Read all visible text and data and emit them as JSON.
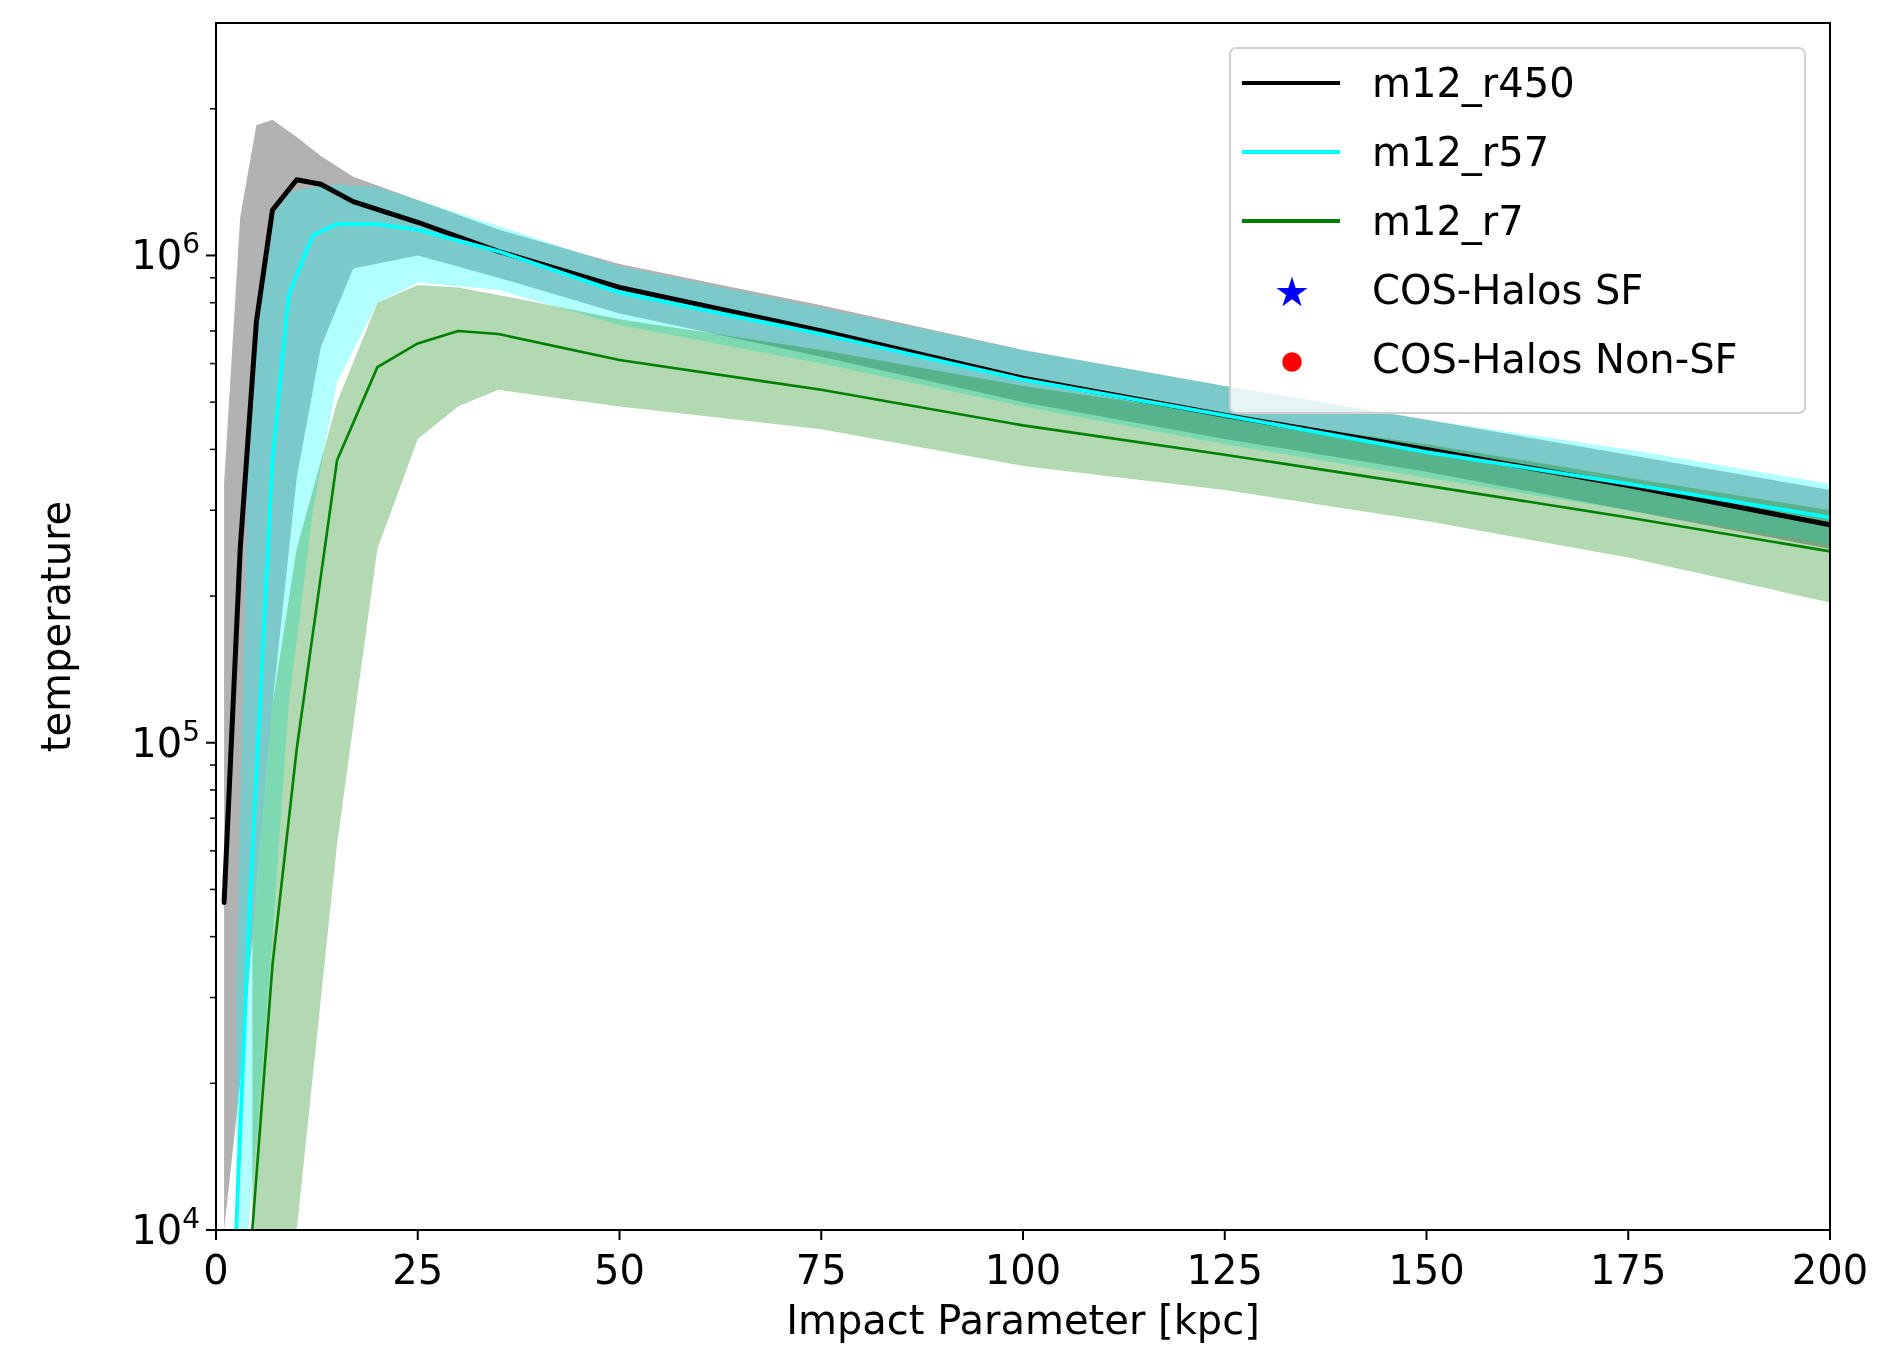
{
  "chart_data": {
    "type": "line",
    "xlabel": "Impact Parameter [kpc]",
    "ylabel": "temperature",
    "log": "y",
    "grid": false,
    "legend": "top right",
    "xlim": [
      0,
      200
    ],
    "xticks": [
      0,
      25,
      50,
      75,
      100,
      125,
      150,
      175,
      200
    ],
    "ylim": [
      10000,
      3000000
    ],
    "yticks": [
      {
        "value": 10000,
        "label": "10$^{4}$"
      },
      {
        "value": 100000,
        "label": "10$^{5}$"
      },
      {
        "value": 1000000,
        "label": "10$^{6}$"
      }
    ],
    "series": [
      {
        "name": "m12_r450",
        "color": "#000000",
        "x": [
          1,
          3,
          5,
          7,
          10,
          13,
          17,
          25,
          35,
          50,
          75,
          100,
          125,
          150,
          175,
          200
        ],
        "values": [
          47000,
          250000,
          730000,
          1240000,
          1430000,
          1400000,
          1290000,
          1170000,
          1020000,
          860000,
          700000,
          560000,
          470000,
          400000,
          337000,
          280000
        ],
        "upper": [
          340000,
          1200000,
          1850000,
          1900000,
          1750000,
          1600000,
          1450000,
          1300000,
          1130000,
          960000,
          790000,
          640000,
          540000,
          460000,
          390000,
          330000
        ],
        "lower": [
          10000,
          20000,
          50000,
          120000,
          350000,
          650000,
          940000,
          1000000,
          900000,
          760000,
          620000,
          500000,
          420000,
          360000,
          300000,
          250000
        ]
      },
      {
        "name": "m12_r57",
        "color": "#00ffff",
        "x": [
          2.5,
          4,
          5,
          7,
          9,
          12,
          15,
          20,
          25,
          35,
          50,
          75,
          100,
          125,
          150,
          175,
          200
        ],
        "values": [
          10000,
          40000,
          86000,
          380000,
          830000,
          1100000,
          1160000,
          1160000,
          1130000,
          1020000,
          840000,
          690000,
          556000,
          470000,
          395000,
          340000,
          290000
        ],
        "upper": [
          30000,
          400000,
          700000,
          1200000,
          1350000,
          1380000,
          1400000,
          1380000,
          1300000,
          1150000,
          950000,
          780000,
          640000,
          540000,
          460000,
          400000,
          340000
        ],
        "lower": [
          10000,
          10000,
          15000,
          40000,
          120000,
          300000,
          550000,
          800000,
          880000,
          850000,
          720000,
          600000,
          490000,
          410000,
          350000,
          300000,
          255000
        ]
      },
      {
        "name": "m12_r7",
        "color": "#008000",
        "x": [
          4.5,
          7,
          10,
          15,
          20,
          25,
          30,
          35,
          50,
          75,
          100,
          125,
          150,
          175,
          200
        ],
        "values": [
          10000,
          35000,
          97000,
          380000,
          590000,
          660000,
          700000,
          690000,
          610000,
          530000,
          448000,
          390000,
          337000,
          290000,
          247000
        ],
        "upper": [
          40000,
          120000,
          250000,
          500000,
          800000,
          870000,
          860000,
          830000,
          740000,
          640000,
          540000,
          470000,
          410000,
          350000,
          300000
        ],
        "lower": [
          10000,
          10000,
          10000,
          62000,
          250000,
          420000,
          490000,
          530000,
          490000,
          440000,
          370000,
          330000,
          285000,
          240000,
          194000
        ]
      },
      {
        "name": "COS-Halos SF",
        "color": "#0000ff",
        "type": "scatter",
        "marker": "star"
      },
      {
        "name": "COS-Halos Non-SF",
        "color": "#ff0000",
        "type": "scatter",
        "marker": "circle"
      }
    ]
  }
}
